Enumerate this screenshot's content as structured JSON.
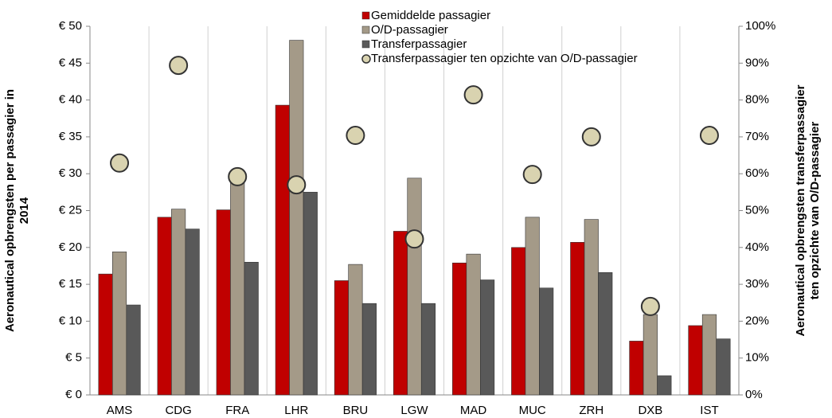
{
  "chart_data": {
    "type": "bar",
    "y_label": [
      "Aeronautical opbrengsten per passagier in",
      "2014"
    ],
    "y2_label": [
      "Aeronautical opbrengsten transferpassagier",
      "ten opzichte van O/D-passagier"
    ],
    "categories": [
      "AMS",
      "CDG",
      "FRA",
      "LHR",
      "BRU",
      "LGW",
      "MAD",
      "MUC",
      "ZRH",
      "DXB",
      "IST"
    ],
    "series": [
      {
        "name": "Gemiddelde passagier",
        "color": "#c00000",
        "values": [
          16.4,
          24.1,
          25.1,
          39.3,
          15.5,
          22.2,
          17.9,
          20.0,
          20.7,
          7.3,
          9.4
        ]
      },
      {
        "name": "O/D-passagier",
        "color": "#a49a88",
        "values": [
          19.4,
          25.2,
          29.5,
          48.1,
          17.7,
          29.4,
          19.1,
          24.1,
          23.8,
          10.9,
          10.9
        ]
      },
      {
        "name": "Transferpassagier",
        "color": "#595959",
        "values": [
          12.2,
          22.5,
          18.0,
          27.5,
          12.4,
          12.4,
          15.6,
          14.5,
          16.6,
          2.6,
          7.6
        ]
      },
      {
        "name": "Transferpassagier ten opzichte van O/D-passagier",
        "color": "#d9d3b0",
        "type": "scatter",
        "axis": "y2",
        "values": [
          62.9,
          89.4,
          59.2,
          57.0,
          70.4,
          42.3,
          81.4,
          59.8,
          70.0,
          24.0,
          70.4
        ]
      }
    ],
    "ylim": [
      0,
      50
    ],
    "yticks": [
      {
        "value": 0,
        "label": "€ 0"
      },
      {
        "value": 5,
        "label": "€ 5"
      },
      {
        "value": 10,
        "label": "€ 10"
      },
      {
        "value": 15,
        "label": "€ 15"
      },
      {
        "value": 20,
        "label": "€ 20"
      },
      {
        "value": 25,
        "label": "€ 25"
      },
      {
        "value": 30,
        "label": "€ 30"
      },
      {
        "value": 35,
        "label": "€ 35"
      },
      {
        "value": 40,
        "label": "€ 40"
      },
      {
        "value": 45,
        "label": "€ 45"
      },
      {
        "value": 50,
        "label": "€ 50"
      }
    ],
    "y2lim": [
      0,
      100
    ],
    "y2ticks": [
      {
        "value": 0,
        "label": "0%"
      },
      {
        "value": 10,
        "label": "10%"
      },
      {
        "value": 20,
        "label": "20%"
      },
      {
        "value": 30,
        "label": "30%"
      },
      {
        "value": 40,
        "label": "40%"
      },
      {
        "value": 50,
        "label": "50%"
      },
      {
        "value": 60,
        "label": "60%"
      },
      {
        "value": 70,
        "label": "70%"
      },
      {
        "value": 80,
        "label": "80%"
      },
      {
        "value": 90,
        "label": "90%"
      },
      {
        "value": 100,
        "label": "100%"
      }
    ],
    "legend": "top"
  }
}
